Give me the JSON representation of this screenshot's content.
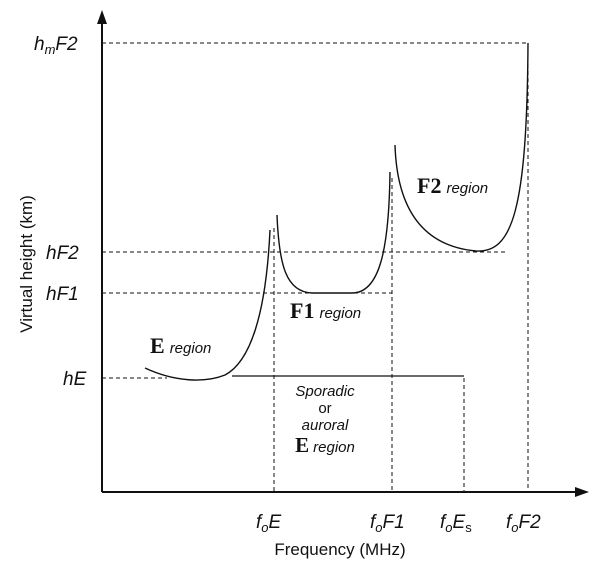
{
  "axes": {
    "x_label": "Frequency (MHz)",
    "y_label": "Virtual height (km)"
  },
  "y_ticks": {
    "hmF2": {
      "main": "h",
      "sub": "m",
      "rest": "F2"
    },
    "hF2": "hF2",
    "hF1": "hF1",
    "hE": "hE"
  },
  "x_ticks": {
    "foE": {
      "main": "f",
      "sub": "o",
      "rest": "E"
    },
    "foF1": {
      "main": "f",
      "sub": "o",
      "rest": "F1"
    },
    "foEs": {
      "main": "f",
      "sub": "o",
      "rest": "E",
      "sub2": "s"
    },
    "foF2": {
      "main": "f",
      "sub": "o",
      "rest": "F2"
    }
  },
  "regions": {
    "e": {
      "letter": "E",
      "word": "region"
    },
    "f1": {
      "letter": "F1",
      "word": "region"
    },
    "f2": {
      "letter": "F2",
      "word": "region"
    },
    "sporadic": {
      "line1": "Sporadic",
      "line2": "or",
      "line3": "auroral",
      "letter": "E",
      "word": "region"
    }
  },
  "colors": {
    "ink": "#111111",
    "background": "#ffffff"
  }
}
